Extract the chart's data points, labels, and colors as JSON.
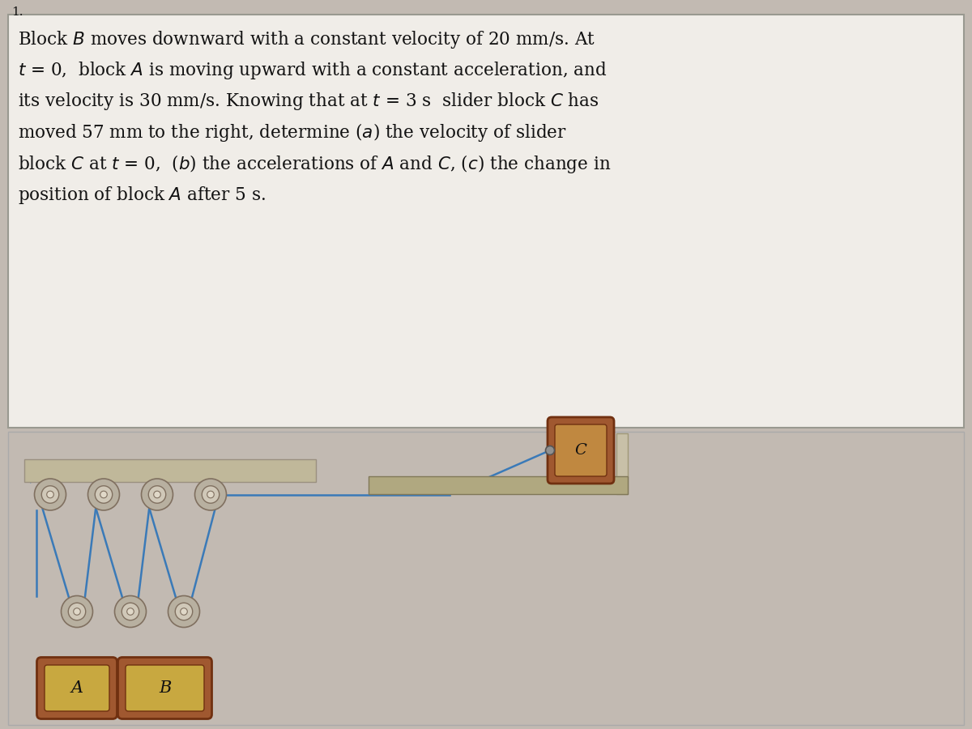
{
  "bg_color": "#c2bab2",
  "text_box_bg": "#f0ede8",
  "text_box_edge": "#999990",
  "problem_number": "1.",
  "ceiling_color": "#c0b89a",
  "ceiling_edge": "#9a9080",
  "pulley_outer_color": "#b8b0a0",
  "pulley_outer_edge": "#807060",
  "pulley_inner_color": "#d0c8b8",
  "pulley_hub_color": "#e0d8c8",
  "rope_color": "#3a7ab8",
  "block_outer": "#a05830",
  "block_inner": "#c8a840",
  "block_edge": "#703010",
  "shelf_color": "#b0a880",
  "shelf_edge": "#807858",
  "wall_color": "#c8c0a8",
  "wall_edge": "#a09878",
  "label_A": "A",
  "label_B": "B",
  "label_C": "C",
  "text_color": "#111111",
  "fig_width": 12.0,
  "fig_height": 9.0
}
